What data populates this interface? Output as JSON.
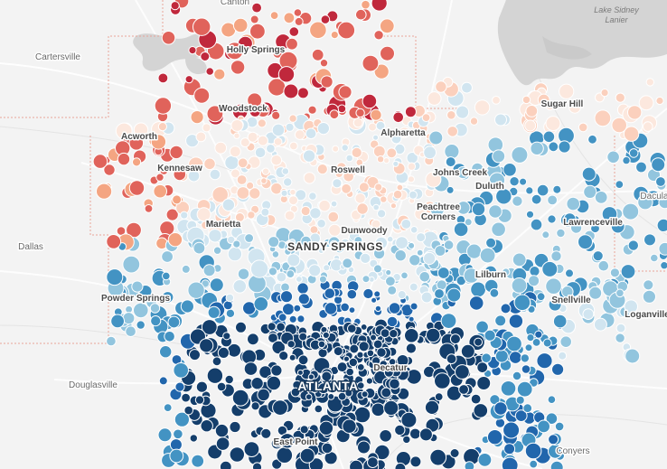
{
  "map": {
    "palette": [
      "#c0283c",
      "#e0635b",
      "#f4a582",
      "#fbd0bd",
      "#fce8de",
      "#d1e5f0",
      "#92c5de",
      "#4393c3",
      "#2166ac",
      "#143e6b"
    ],
    "background": "#f3f3f3",
    "water_color": "#d4d4d4",
    "boundary_color": "#e8a59a"
  },
  "labels": [
    {
      "key": "canton",
      "text": "Canton"
    },
    {
      "key": "lake_sidney_lanier",
      "text": "Lake Sidney Lanier"
    },
    {
      "key": "cartersville",
      "text": "Cartersville"
    },
    {
      "key": "holly_springs",
      "text": "Holly Springs"
    },
    {
      "key": "sugar_hill",
      "text": "Sugar Hill"
    },
    {
      "key": "woodstock",
      "text": "Woodstock"
    },
    {
      "key": "acworth",
      "text": "Acworth"
    },
    {
      "key": "alpharetta",
      "text": "Alpharetta"
    },
    {
      "key": "kennesaw",
      "text": "Kennesaw"
    },
    {
      "key": "roswell",
      "text": "Roswell"
    },
    {
      "key": "johns_creek",
      "text": "Johns Creek"
    },
    {
      "key": "duluth",
      "text": "Duluth"
    },
    {
      "key": "dacula",
      "text": "Dacula"
    },
    {
      "key": "marietta",
      "text": "Marietta"
    },
    {
      "key": "dunwoody",
      "text": "Dunwoody"
    },
    {
      "key": "peachtree_corners",
      "text": "Peachtree Corners"
    },
    {
      "key": "lawrenceville",
      "text": "Lawrenceville"
    },
    {
      "key": "sandy_springs",
      "text": "SANDY SPRINGS"
    },
    {
      "key": "dallas",
      "text": "Dallas"
    },
    {
      "key": "lilburn",
      "text": "Lilburn"
    },
    {
      "key": "powder_springs",
      "text": "Powder Springs"
    },
    {
      "key": "snellville",
      "text": "Snellville"
    },
    {
      "key": "loganville",
      "text": "Loganville"
    },
    {
      "key": "decatur",
      "text": "Decatur"
    },
    {
      "key": "douglasville",
      "text": "Douglasville"
    },
    {
      "key": "atlanta",
      "text": "ATLANTA"
    },
    {
      "key": "east_point",
      "text": "East Point"
    },
    {
      "key": "conyers",
      "text": "Conyers"
    }
  ]
}
